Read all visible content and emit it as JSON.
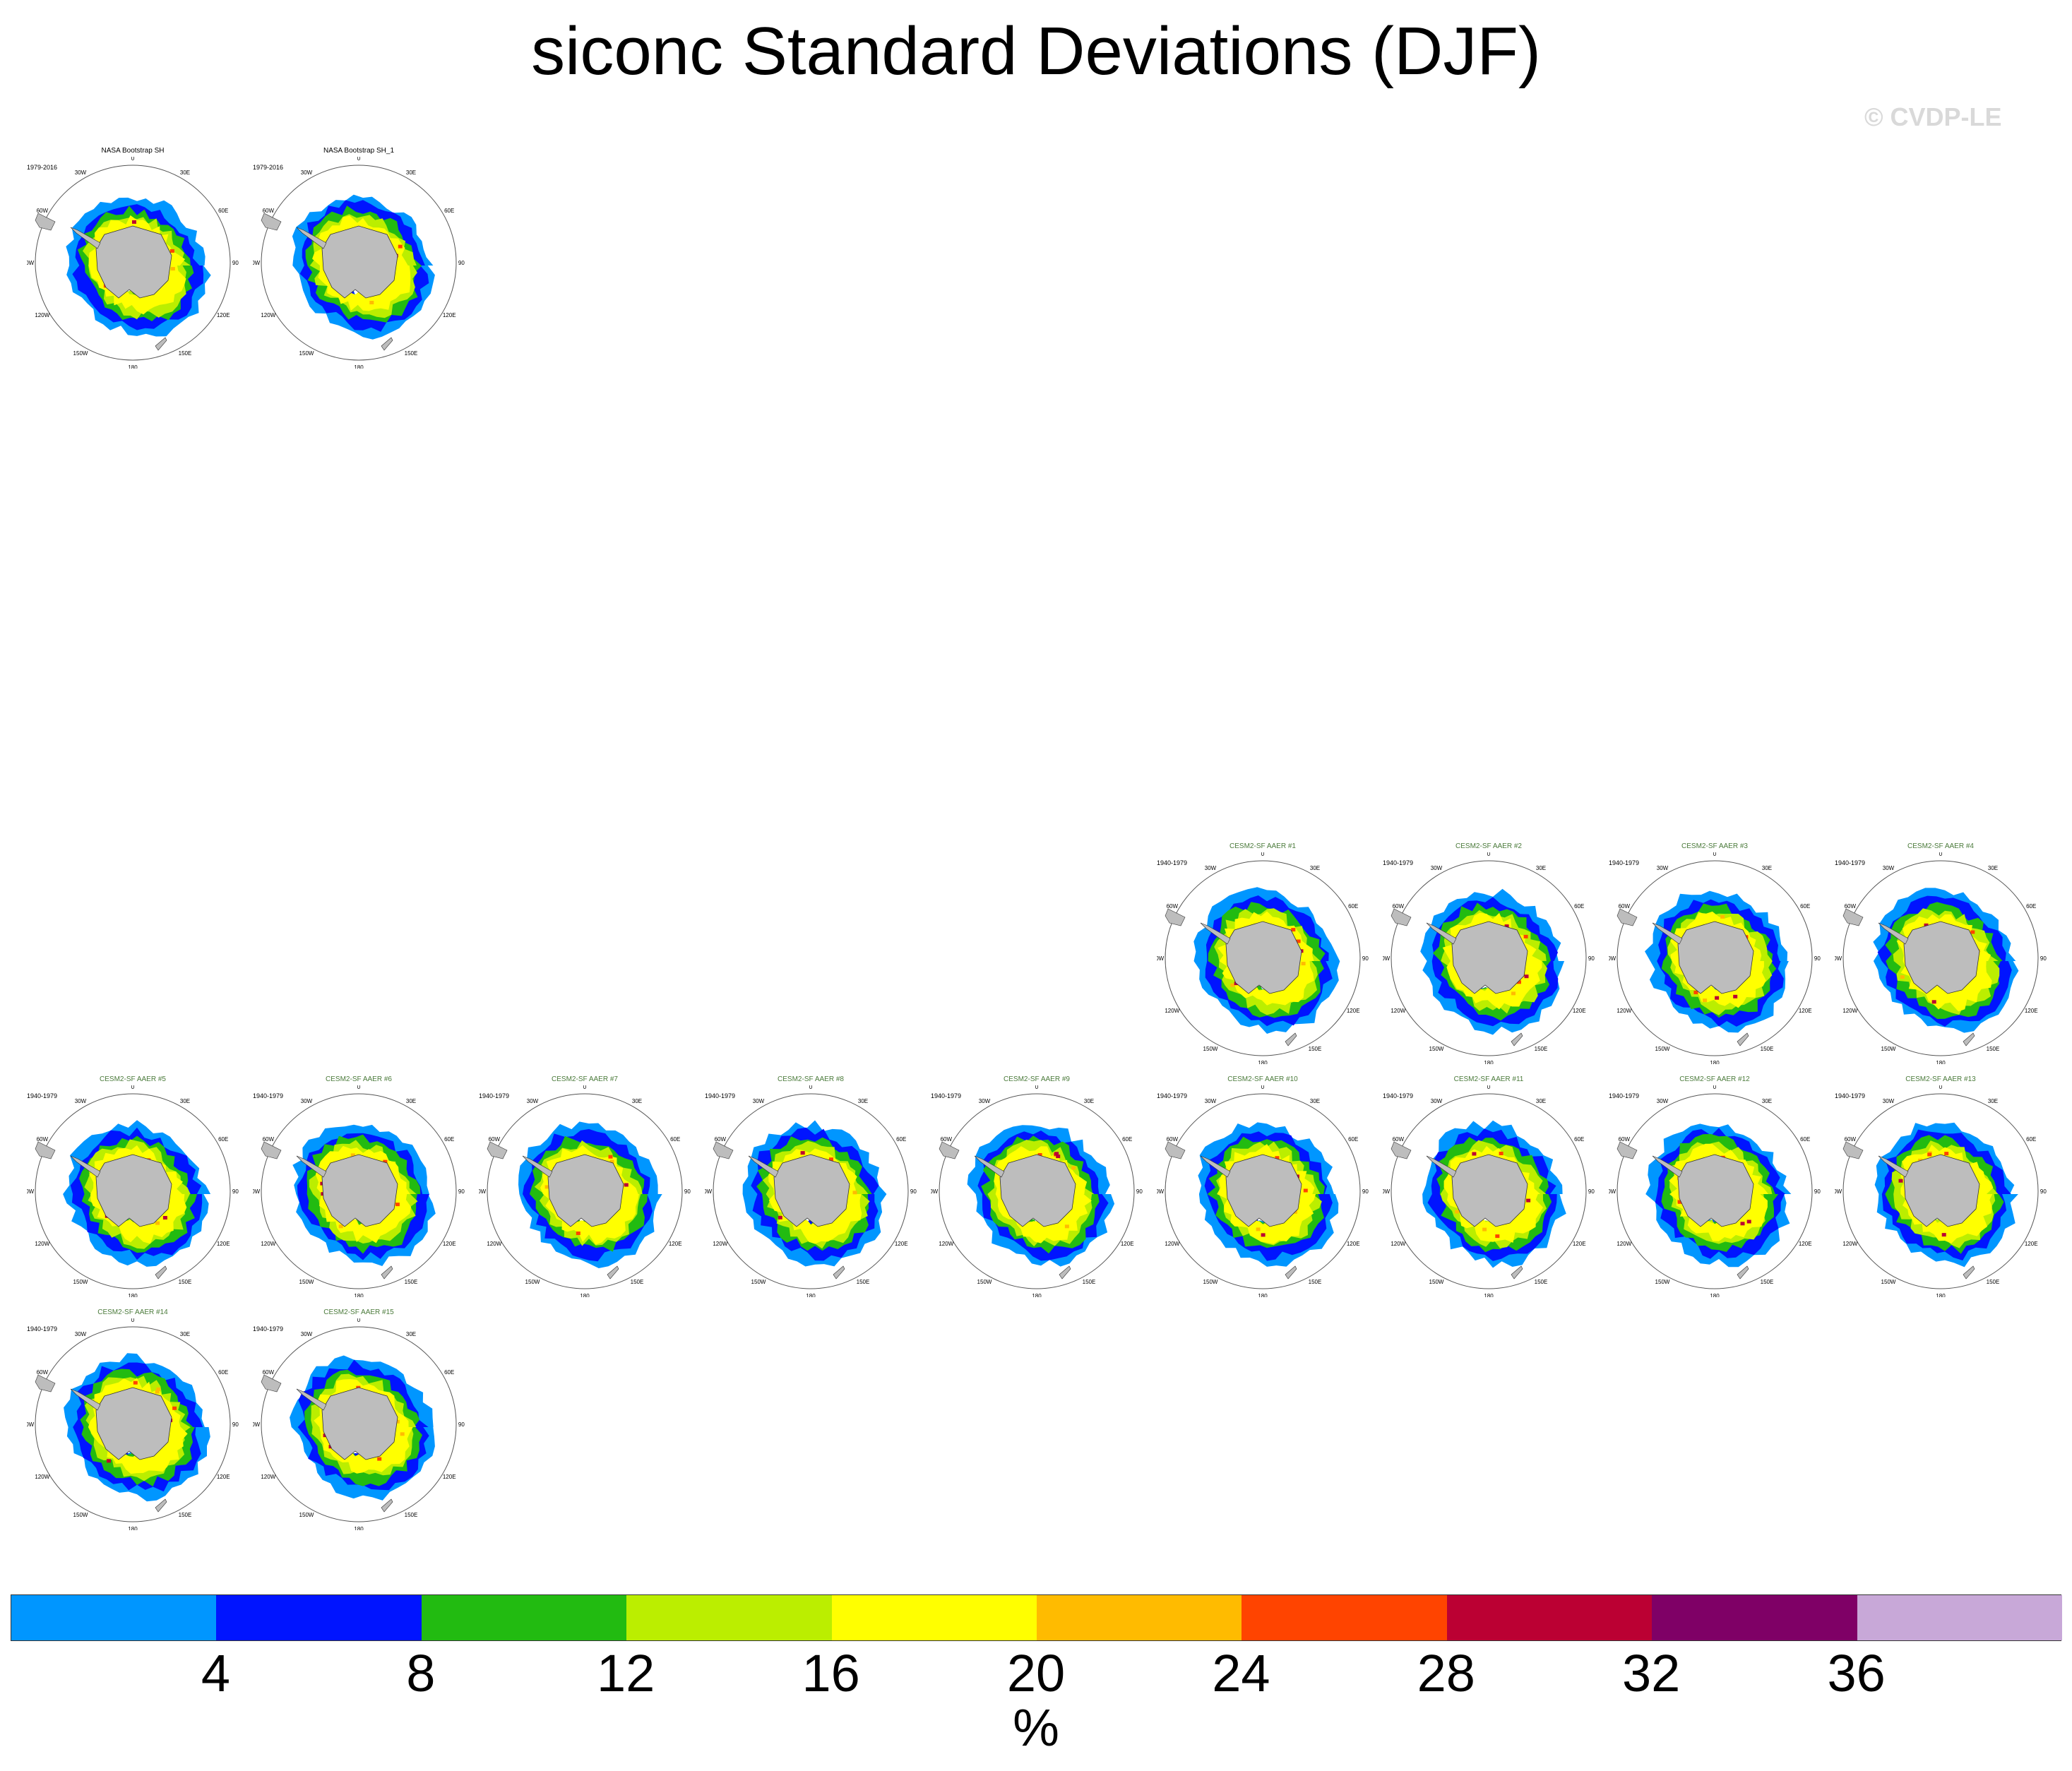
{
  "title": "siconc Standard Deviations (DJF)",
  "watermark": "© CVDP-LE",
  "colors": {
    "land": "#bdbdbd",
    "outline": "#333333",
    "model_title": "#4a7a3a"
  },
  "map_labels": {
    "lon": [
      "0",
      "30E",
      "60E",
      "90E",
      "120E",
      "150E",
      "180",
      "150W",
      "120W",
      "90W",
      "60W",
      "30W"
    ]
  },
  "panels": [
    {
      "title": "NASA Bootstrap SH",
      "period": "1979-2016",
      "kind": "obs"
    },
    {
      "title": "NASA Bootstrap SH_1",
      "period": "1979-2016",
      "kind": "obs"
    },
    {
      "title": "CESM2-SF AAER #1",
      "period": "1940-1979",
      "kind": "model"
    },
    {
      "title": "CESM2-SF AAER #2",
      "period": "1940-1979",
      "kind": "model"
    },
    {
      "title": "CESM2-SF AAER #3",
      "period": "1940-1979",
      "kind": "model"
    },
    {
      "title": "CESM2-SF AAER #4",
      "period": "1940-1979",
      "kind": "model"
    },
    {
      "title": "CESM2-SF AAER #5",
      "period": "1940-1979",
      "kind": "model"
    },
    {
      "title": "CESM2-SF AAER #6",
      "period": "1940-1979",
      "kind": "model"
    },
    {
      "title": "CESM2-SF AAER #7",
      "period": "1940-1979",
      "kind": "model"
    },
    {
      "title": "CESM2-SF AAER #8",
      "period": "1940-1979",
      "kind": "model"
    },
    {
      "title": "CESM2-SF AAER #9",
      "period": "1940-1979",
      "kind": "model"
    },
    {
      "title": "CESM2-SF AAER #10",
      "period": "1940-1979",
      "kind": "model"
    },
    {
      "title": "CESM2-SF AAER #11",
      "period": "1940-1979",
      "kind": "model"
    },
    {
      "title": "CESM2-SF AAER #12",
      "period": "1940-1979",
      "kind": "model"
    },
    {
      "title": "CESM2-SF AAER #13",
      "period": "1940-1979",
      "kind": "model"
    },
    {
      "title": "CESM2-SF AAER #14",
      "period": "1940-1979",
      "kind": "model"
    },
    {
      "title": "CESM2-SF AAER #15",
      "period": "1940-1979",
      "kind": "model"
    }
  ],
  "colorbar": {
    "colors": [
      "#0096ff",
      "#0014ff",
      "#22bb11",
      "#bbee00",
      "#ffff00",
      "#ffbb00",
      "#ff4400",
      "#bb0033",
      "#7f0066",
      "#c8a8d8"
    ],
    "labels": [
      "4",
      "8",
      "12",
      "16",
      "20",
      "24",
      "28",
      "32",
      "36"
    ],
    "units": "%"
  }
}
